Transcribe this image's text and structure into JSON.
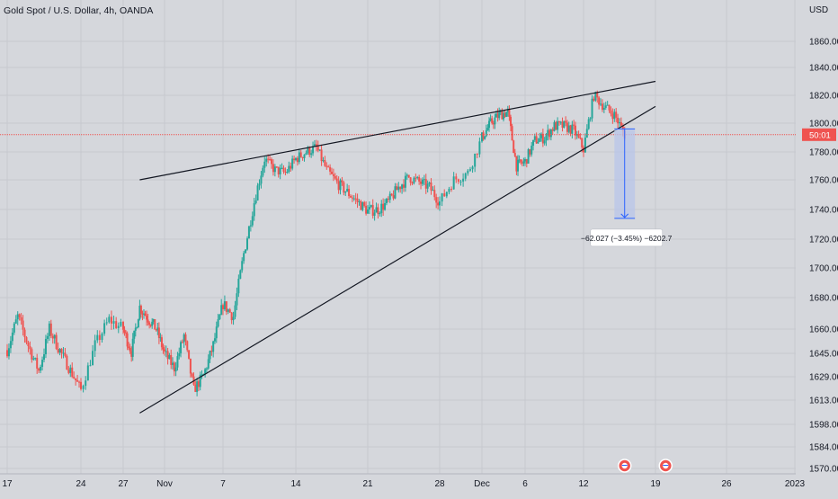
{
  "header": {
    "symbol_title": "Gold Spot / U.S. Dollar, 4h, OANDA",
    "currency": "USD"
  },
  "colors": {
    "background": "#d5d7dc",
    "up_candle": "#26a69a",
    "down_candle": "#ef5350",
    "grid": "#c7c9ce",
    "price_line": "#ef5350",
    "trendline": "#131722",
    "measure_fill": "#b8c6ea",
    "measure_stroke": "#2962ff",
    "event_badge": "#ef5350"
  },
  "price_tag": {
    "value": "50:01",
    "price": 1792
  },
  "measure": {
    "label": "−62.027 (−3.45%) −6202.7",
    "from_price": 1796,
    "to_price": 1734,
    "start_date": "Dec 15",
    "end_date": "Dec 17"
  },
  "trendlines": [
    {
      "name": "upper",
      "from": [
        "Oct 29",
        1760
      ],
      "to": [
        "Dec 19",
        1830
      ]
    },
    {
      "name": "lower",
      "from": [
        "Oct 29",
        1605
      ],
      "to": [
        "Dec 19",
        1812
      ]
    }
  ],
  "events": [
    {
      "icon": "us-flag-icon",
      "date": "Dec 16"
    },
    {
      "icon": "us-flag-icon",
      "date": "Dec 20"
    }
  ],
  "chart_data": {
    "type": "candlestick",
    "title": "Gold Spot / U.S. Dollar, 4h, OANDA",
    "y_axis_label": "USD",
    "y_ticks": [
      "1860.000",
      "1840.000",
      "1820.000",
      "1800.000",
      "1780.000",
      "1760.000",
      "1740.000",
      "1720.000",
      "1700.000",
      "1680.000",
      "1660.000",
      "1645.000",
      "1629.000",
      "1613.000",
      "1598.000",
      "1584.000",
      "1570.000"
    ],
    "x_ticks": [
      "17",
      "24",
      "27",
      "Nov",
      "7",
      "14",
      "21",
      "28",
      "Dec",
      "6",
      "12",
      "19",
      "26",
      "2023"
    ],
    "grid": true,
    "close_path": [
      [
        "Oct 17",
        1647
      ],
      [
        "Oct 18",
        1668
      ],
      [
        "Oct 19",
        1650
      ],
      [
        "Oct 20",
        1633
      ],
      [
        "Oct 21",
        1660
      ],
      [
        "Oct 24",
        1620
      ],
      [
        "Oct 25",
        1650
      ],
      [
        "Oct 26",
        1666
      ],
      [
        "Oct 27",
        1660
      ],
      [
        "Oct 28",
        1646
      ],
      [
        "Oct 29",
        1674
      ],
      [
        "Oct 31",
        1660
      ],
      [
        "Nov 1",
        1645
      ],
      [
        "Nov 2",
        1635
      ],
      [
        "Nov 3",
        1656
      ],
      [
        "Nov 4",
        1620
      ],
      [
        "Nov 5",
        1630
      ],
      [
        "Nov 6",
        1650
      ],
      [
        "Nov 7",
        1676
      ],
      [
        "Nov 8",
        1668
      ],
      [
        "Nov 9",
        1710
      ],
      [
        "Nov 10",
        1745
      ],
      [
        "Nov 11",
        1775
      ],
      [
        "Nov 12",
        1767
      ],
      [
        "Nov 13",
        1765
      ],
      [
        "Nov 14",
        1775
      ],
      [
        "Nov 15",
        1780
      ],
      [
        "Nov 16",
        1783
      ],
      [
        "Nov 17",
        1767
      ],
      [
        "Nov 18",
        1758
      ],
      [
        "Nov 21",
        1739
      ],
      [
        "Nov 22",
        1740
      ],
      [
        "Nov 23",
        1745
      ],
      [
        "Nov 24",
        1755
      ],
      [
        "Nov 25",
        1762
      ],
      [
        "Nov 27",
        1755
      ],
      [
        "Nov 28",
        1745
      ],
      [
        "Nov 29",
        1760
      ],
      [
        "Nov 30",
        1765
      ],
      [
        "Dec 1",
        1790
      ],
      [
        "Dec 2",
        1800
      ],
      [
        "Dec 3",
        1806
      ],
      [
        "Dec 4",
        1808
      ],
      [
        "Dec 5",
        1770
      ],
      [
        "Dec 6",
        1773
      ],
      [
        "Dec 7",
        1788
      ],
      [
        "Dec 8",
        1790
      ],
      [
        "Dec 9",
        1798
      ],
      [
        "Dec 10",
        1798
      ],
      [
        "Dec 11",
        1795
      ],
      [
        "Dec 12",
        1782
      ],
      [
        "Dec 13",
        1820
      ],
      [
        "Dec 14",
        1812
      ],
      [
        "Dec 15",
        1806
      ],
      [
        "Dec 16",
        1792
      ]
    ]
  }
}
